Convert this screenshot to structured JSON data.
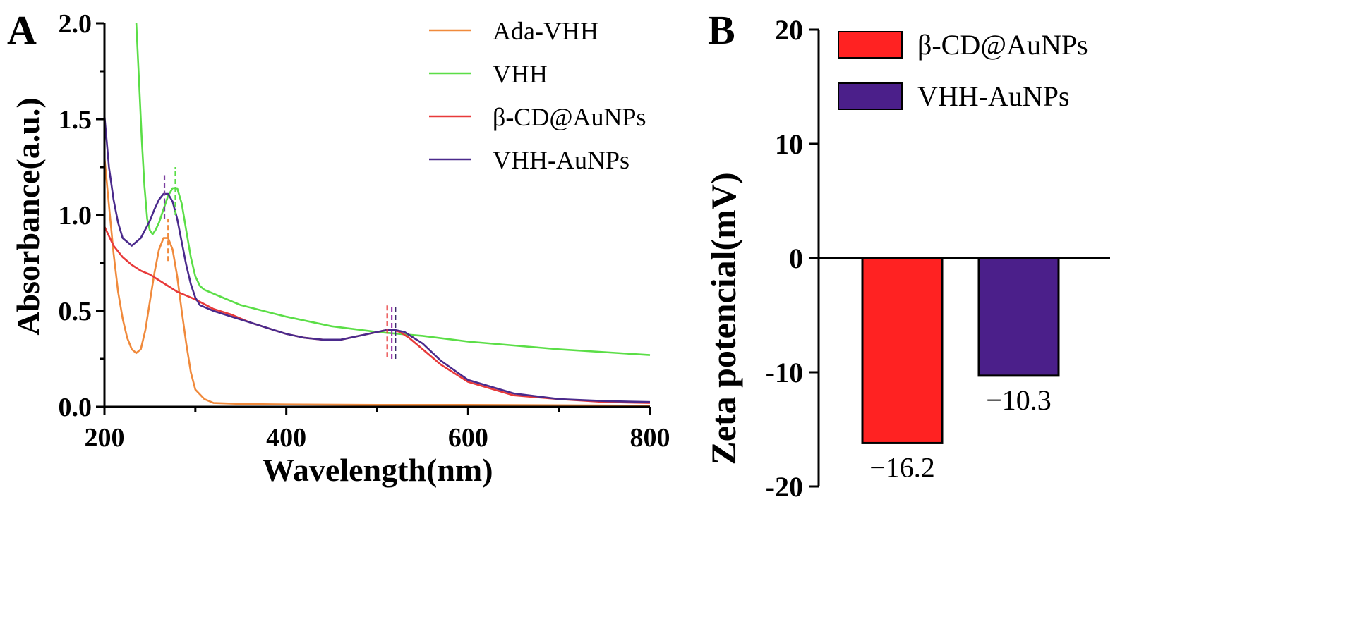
{
  "chart_data": [
    {
      "panel": "A",
      "type": "line",
      "xlabel": "Wavelength(nm)",
      "ylabel": "Absorbance(a.u.)",
      "xlim": [
        200,
        800
      ],
      "ylim": [
        0,
        2.0
      ],
      "xticks": [
        "200",
        "400",
        "600",
        "800"
      ],
      "yticks": [
        "0.0",
        "0.5",
        "1.0",
        "1.5",
        "2.0"
      ],
      "legend_position": "top-right",
      "series": [
        {
          "name": "Ada-VHH",
          "color": "#F08A3C",
          "x": [
            200,
            205,
            210,
            215,
            220,
            225,
            230,
            235,
            240,
            245,
            250,
            255,
            260,
            265,
            270,
            275,
            280,
            285,
            290,
            295,
            300,
            310,
            320,
            350,
            400,
            500,
            600,
            700,
            800
          ],
          "y": [
            1.3,
            1.05,
            0.8,
            0.6,
            0.46,
            0.36,
            0.3,
            0.28,
            0.3,
            0.4,
            0.55,
            0.7,
            0.82,
            0.88,
            0.88,
            0.82,
            0.68,
            0.5,
            0.33,
            0.18,
            0.09,
            0.04,
            0.02,
            0.015,
            0.012,
            0.01,
            0.01,
            0.008,
            0.006
          ],
          "peak": 270
        },
        {
          "name": "VHH",
          "color": "#5BDE47",
          "x": [
            235,
            238,
            241,
            244,
            247,
            250,
            253,
            256,
            260,
            265,
            270,
            275,
            280,
            285,
            290,
            295,
            300,
            305,
            310,
            330,
            350,
            400,
            450,
            500,
            550,
            600,
            650,
            700,
            750,
            800
          ],
          "y": [
            2.0,
            1.7,
            1.4,
            1.15,
            0.98,
            0.92,
            0.9,
            0.92,
            0.96,
            1.03,
            1.1,
            1.14,
            1.14,
            1.06,
            0.92,
            0.78,
            0.68,
            0.63,
            0.61,
            0.57,
            0.53,
            0.47,
            0.42,
            0.39,
            0.37,
            0.34,
            0.32,
            0.3,
            0.285,
            0.27
          ],
          "peak": 278
        },
        {
          "name": "β-CD@AuNPs",
          "color": "#E83A3A",
          "x": [
            200,
            210,
            220,
            230,
            240,
            250,
            260,
            270,
            280,
            290,
            300,
            320,
            340,
            360,
            380,
            400,
            420,
            440,
            460,
            480,
            500,
            510,
            518,
            525,
            535,
            550,
            570,
            600,
            650,
            700,
            750,
            800
          ],
          "y": [
            0.94,
            0.84,
            0.78,
            0.74,
            0.71,
            0.69,
            0.66,
            0.63,
            0.6,
            0.58,
            0.56,
            0.51,
            0.48,
            0.44,
            0.41,
            0.38,
            0.36,
            0.35,
            0.35,
            0.37,
            0.39,
            0.4,
            0.4,
            0.39,
            0.36,
            0.3,
            0.22,
            0.13,
            0.06,
            0.04,
            0.025,
            0.02
          ],
          "peak": 513
        },
        {
          "name": "VHH-AuNPs",
          "color": "#4A2A8C",
          "x": [
            200,
            205,
            210,
            215,
            220,
            230,
            240,
            250,
            255,
            260,
            265,
            270,
            275,
            280,
            285,
            290,
            295,
            300,
            305,
            310,
            320,
            340,
            360,
            380,
            400,
            420,
            440,
            460,
            480,
            500,
            510,
            520,
            530,
            540,
            550,
            570,
            600,
            650,
            700,
            750,
            800
          ],
          "y": [
            1.52,
            1.25,
            1.08,
            0.96,
            0.88,
            0.84,
            0.88,
            0.97,
            1.03,
            1.08,
            1.11,
            1.11,
            1.07,
            0.98,
            0.86,
            0.74,
            0.64,
            0.57,
            0.53,
            0.52,
            0.5,
            0.47,
            0.44,
            0.41,
            0.38,
            0.36,
            0.35,
            0.35,
            0.37,
            0.39,
            0.4,
            0.4,
            0.39,
            0.36,
            0.33,
            0.24,
            0.14,
            0.07,
            0.04,
            0.03,
            0.025
          ],
          "peak": 266
        }
      ],
      "dashed_markers": [
        {
          "x": 266,
          "color": "#7B3FA0",
          "y0": 0.98,
          "y1": 1.22
        },
        {
          "x": 278,
          "color": "#5BDE47",
          "y0": 1.0,
          "y1": 1.25
        },
        {
          "x": 270,
          "color": "#F08A3C",
          "y0": 0.76,
          "y1": 0.98
        },
        {
          "x": 511,
          "color": "#E83A3A",
          "y0": 0.26,
          "y1": 0.54
        },
        {
          "x": 516,
          "color": "#9B3FB0",
          "y0": 0.25,
          "y1": 0.53
        },
        {
          "x": 520,
          "color": "#3A2A6C",
          "y0": 0.25,
          "y1": 0.52
        }
      ]
    },
    {
      "panel": "B",
      "type": "bar",
      "ylabel": "Zeta potencial(mV)",
      "ylim": [
        -20,
        20
      ],
      "yticks": [
        "-20",
        "-10",
        "0",
        "10",
        "20"
      ],
      "legend_position": "top-right",
      "categories": [
        "β-CD@AuNPs",
        "VHH-AuNPs"
      ],
      "values": [
        -16.2,
        -10.3
      ],
      "value_labels": [
        "−16.2",
        "−10.3"
      ],
      "colors": [
        "#FF2222",
        "#4B1F8A"
      ]
    }
  ],
  "panel_labels": {
    "a": "A",
    "b": "B"
  }
}
